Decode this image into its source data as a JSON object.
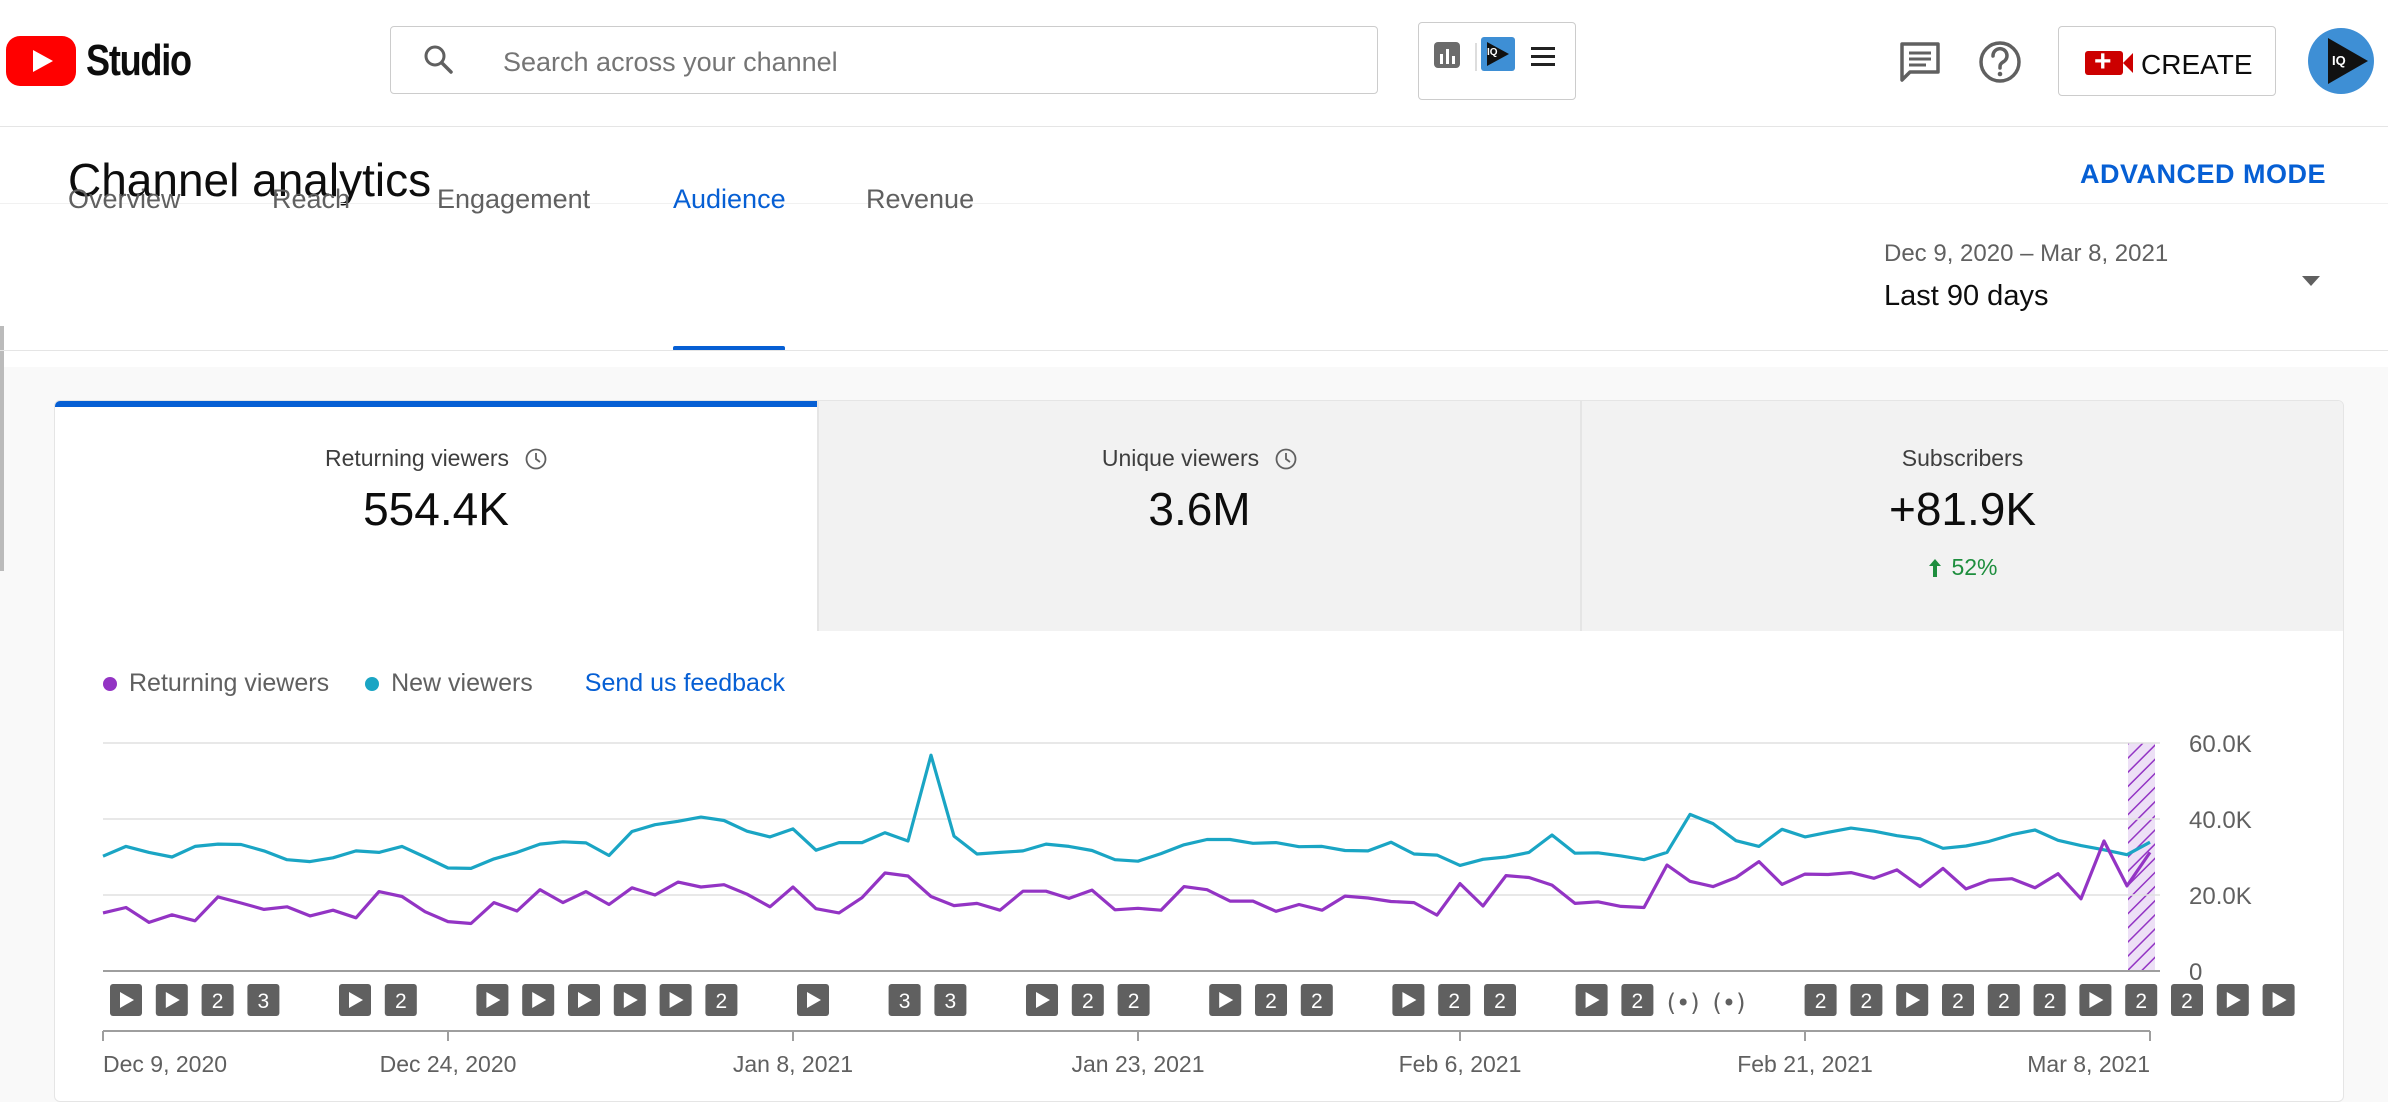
{
  "header": {
    "studio_label": "Studio",
    "search_placeholder": "Search across your channel",
    "create_label": "CREATE",
    "avatar_text": "IQ",
    "ext_avatar_text": "IQ"
  },
  "page": {
    "title": "Channel analytics",
    "advanced_mode": "ADVANCED MODE",
    "tabs": [
      {
        "label": "Overview",
        "active": false
      },
      {
        "label": "Reach",
        "active": false
      },
      {
        "label": "Engagement",
        "active": false
      },
      {
        "label": "Audience",
        "active": true
      },
      {
        "label": "Revenue",
        "active": false
      }
    ],
    "date_range": "Dec 9, 2020 – Mar 8, 2021",
    "date_label": "Last 90 days"
  },
  "metrics": [
    {
      "label": "Returning viewers",
      "value": "554.4K",
      "active": true
    },
    {
      "label": "Unique viewers",
      "value": "3.6M",
      "active": false
    },
    {
      "label": "Subscribers",
      "value": "+81.9K",
      "delta": "52%",
      "active": false
    }
  ],
  "legend": {
    "returning": "Returning viewers",
    "new": "New viewers",
    "feedback": "Send us feedback"
  },
  "colors": {
    "returning": "#9334c4",
    "new": "#1aa5c4",
    "accent": "#065fd4",
    "positive": "#1e8e3e"
  },
  "chart_data": {
    "type": "line",
    "ylim": [
      0,
      60000
    ],
    "y_tick_labels": [
      "0",
      "20.0K",
      "40.0K",
      "60.0K"
    ],
    "y_tick_values": [
      0,
      20000,
      40000,
      60000
    ],
    "x_tick_labels": [
      "Dec 9, 2020",
      "Dec 24, 2020",
      "Jan 8, 2021",
      "Jan 23, 2021",
      "Feb 6, 2021",
      "Feb 21, 2021",
      "Mar 8, 2021"
    ],
    "x_tick_days": [
      0,
      15,
      30,
      45,
      59,
      74,
      89
    ],
    "partial_period_days": [
      88,
      89
    ],
    "series": [
      {
        "name": "New viewers",
        "values": [
          30200,
          32800,
          31200,
          30000,
          32800,
          33400,
          33300,
          31600,
          29300,
          28800,
          29800,
          31600,
          31200,
          32800,
          30000,
          27100,
          27000,
          29500,
          31200,
          33400,
          34000,
          33700,
          30400,
          36700,
          38500,
          39400,
          40500,
          39600,
          36800,
          35300,
          37400,
          31800,
          33800,
          33800,
          36400,
          34200,
          56800,
          35500,
          30800,
          31200,
          31600,
          33400,
          32800,
          31700,
          29300,
          28900,
          30900,
          33200,
          34600,
          34600,
          33600,
          33800,
          32700,
          32800,
          31700,
          31600,
          33900,
          30800,
          30500,
          27800,
          29400,
          30000,
          31200,
          35800,
          31000,
          31100,
          30300,
          29300,
          31200,
          41200,
          38800,
          34300,
          32800,
          37300,
          35300,
          36500,
          37600,
          36800,
          35600,
          34800,
          32300,
          32900,
          34100,
          35900,
          37100,
          34400,
          33000,
          31900,
          30600,
          33900
        ]
      },
      {
        "name": "Returning viewers",
        "values": [
          15300,
          16700,
          12800,
          14800,
          13200,
          19500,
          17900,
          16200,
          16900,
          14500,
          16000,
          14000,
          20900,
          19600,
          15600,
          13000,
          12500,
          18000,
          15800,
          21400,
          18000,
          20900,
          17500,
          21900,
          20000,
          23400,
          22100,
          22700,
          20200,
          16900,
          22100,
          16400,
          15300,
          19300,
          25800,
          25000,
          19600,
          17200,
          17800,
          16000,
          21000,
          21000,
          19100,
          21300,
          16100,
          16500,
          16000,
          22200,
          21400,
          18400,
          18400,
          15700,
          17500,
          16000,
          19700,
          19200,
          18300,
          18000,
          14700,
          23000,
          17100,
          25100,
          24600,
          22600,
          17800,
          18200,
          17000,
          16700,
          27900,
          23600,
          22200,
          24600,
          28800,
          22800,
          25500,
          25400,
          25900,
          24400,
          26600,
          22200,
          27000,
          21600,
          23900,
          24300,
          21900,
          25600,
          19000,
          34200,
          22400,
          31200
        ]
      }
    ]
  },
  "timeline_markers": [
    {
      "kind": "play",
      "text": ""
    },
    {
      "kind": "play",
      "text": ""
    },
    {
      "kind": "count",
      "text": "2"
    },
    {
      "kind": "count",
      "text": "3"
    },
    {
      "kind": "play",
      "text": ""
    },
    {
      "kind": "count",
      "text": "2"
    },
    {
      "kind": "play",
      "text": ""
    },
    {
      "kind": "play",
      "text": ""
    },
    {
      "kind": "play",
      "text": ""
    },
    {
      "kind": "play",
      "text": ""
    },
    {
      "kind": "play",
      "text": ""
    },
    {
      "kind": "count",
      "text": "2"
    },
    {
      "kind": "play",
      "text": ""
    },
    {
      "kind": "count",
      "text": "3"
    },
    {
      "kind": "count",
      "text": "3"
    },
    {
      "kind": "play",
      "text": ""
    },
    {
      "kind": "count",
      "text": "2"
    },
    {
      "kind": "count",
      "text": "2"
    },
    {
      "kind": "play",
      "text": ""
    },
    {
      "kind": "count",
      "text": "2"
    },
    {
      "kind": "count",
      "text": "2"
    },
    {
      "kind": "play",
      "text": ""
    },
    {
      "kind": "count",
      "text": "2"
    },
    {
      "kind": "count",
      "text": "2"
    },
    {
      "kind": "play",
      "text": ""
    },
    {
      "kind": "count",
      "text": "2"
    },
    {
      "kind": "live",
      "text": "(•)"
    },
    {
      "kind": "live",
      "text": "(•)"
    },
    {
      "kind": "count",
      "text": "2"
    },
    {
      "kind": "count",
      "text": "2"
    },
    {
      "kind": "play",
      "text": ""
    },
    {
      "kind": "count",
      "text": "2"
    },
    {
      "kind": "count",
      "text": "2"
    },
    {
      "kind": "count",
      "text": "2"
    },
    {
      "kind": "play",
      "text": ""
    },
    {
      "kind": "count",
      "text": "2"
    },
    {
      "kind": "count",
      "text": "2"
    },
    {
      "kind": "play",
      "text": ""
    },
    {
      "kind": "play",
      "text": ""
    }
  ]
}
